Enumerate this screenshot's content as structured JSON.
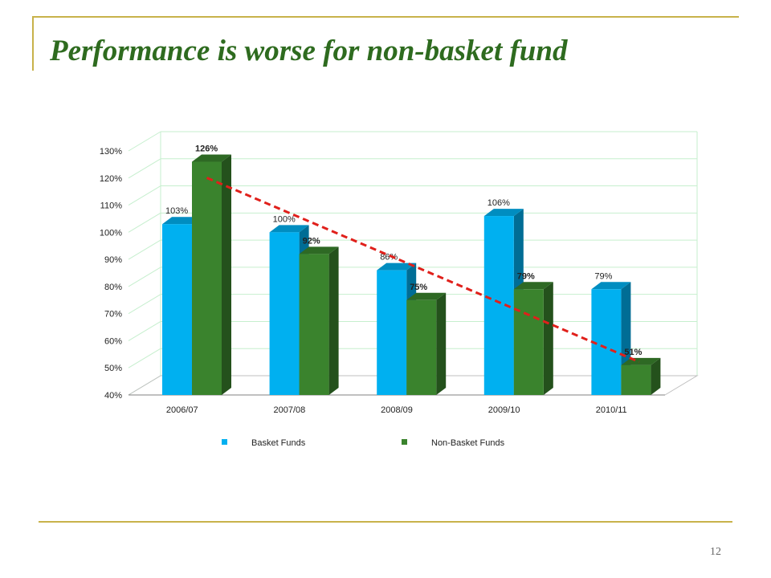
{
  "slide": {
    "title": "Performance is worse for non-basket fund",
    "page_number": "12"
  },
  "chart_data": {
    "type": "bar",
    "categories": [
      "2006/07",
      "2007/08",
      "2008/09",
      "2009/10",
      "2010/11"
    ],
    "series": [
      {
        "name": "Basket  Funds",
        "values": [
          103,
          100,
          86,
          106,
          79
        ],
        "labels": [
          "103%",
          "100%",
          "86%",
          "106%",
          "79%"
        ],
        "color": "#00b0f0"
      },
      {
        "name": "Non-Basket Funds",
        "values": [
          126,
          92,
          75,
          79,
          51
        ],
        "labels": [
          "126%",
          "92%",
          "75%",
          "79%",
          "51%"
        ],
        "color": "#3a832d"
      }
    ],
    "ylim": [
      40,
      130
    ],
    "yticks": [
      "40%",
      "50%",
      "60%",
      "70%",
      "80%",
      "90%",
      "100%",
      "110%",
      "120%",
      "130%"
    ],
    "ytick_values": [
      40,
      50,
      60,
      70,
      80,
      90,
      100,
      110,
      120,
      130
    ],
    "grid": true,
    "gridline_color": "#c6efce",
    "style": "3d-clustered-column",
    "legend_position": "bottom",
    "trendline": {
      "series": "Non-Basket Funds",
      "style": "dashed",
      "color": "#e0201b"
    },
    "title": "",
    "xlabel": "",
    "ylabel": ""
  }
}
